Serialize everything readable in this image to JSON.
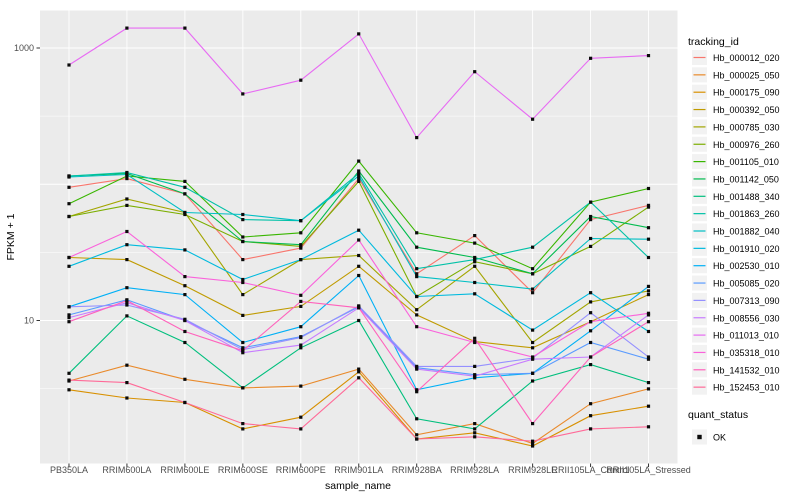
{
  "chart_data": {
    "type": "line",
    "title": "",
    "xlabel": "sample_name",
    "ylabel": "FPKM + 1",
    "y_scale": "log10",
    "ylim": [
      1,
      1600
    ],
    "yticks": [
      {
        "value": 1000,
        "label": "1000"
      },
      {
        "value": 10,
        "label": "10"
      }
    ],
    "y_major_gridlines": [
      10,
      100,
      1000
    ],
    "y_minor_gridlines": [
      3.162,
      31.62,
      316.2
    ],
    "categories": [
      "PB350LA",
      "RRIM600LA",
      "RRIM600LE",
      "RRIM600SE",
      "RRIM600PE",
      "RRIM901LA",
      "RRIM928BA",
      "RRIM928LA",
      "RRIM928LE",
      "RRII105LA_Control",
      "RRII105LA_Stressed"
    ],
    "legend": {
      "series_title": "tracking_id",
      "status_title": "quant_status",
      "status_items": [
        {
          "label": "OK",
          "marker": "black-square"
        }
      ]
    },
    "colors": {
      "panel_bg": "#EBEBEB",
      "gridline": "#FFFFFF",
      "point": "#0A0A0A",
      "tick_mark": "#333333",
      "tick_text": "#4D4D4D",
      "legend_key_bg": "#F2F2F2"
    },
    "series": [
      {
        "name": "Hb_000012_020",
        "color": "#F8766D",
        "values": [
          95,
          110,
          85,
          28,
          34,
          110,
          22,
          42,
          16,
          55,
          70
        ]
      },
      {
        "name": "Hb_000025_050",
        "color": "#E98A2B",
        "values": [
          3.6,
          4.7,
          3.7,
          3.2,
          3.3,
          4.4,
          1.45,
          1.75,
          1.25,
          2.45,
          3.15
        ]
      },
      {
        "name": "Hb_000175_090",
        "color": "#D89000",
        "values": [
          3.1,
          2.7,
          2.5,
          1.6,
          1.95,
          4.2,
          1.35,
          1.5,
          1.2,
          2.0,
          2.35
        ]
      },
      {
        "name": "Hb_000392_050",
        "color": "#C09B00",
        "values": [
          29,
          28,
          18,
          10.9,
          12.7,
          25,
          11,
          7,
          6.3,
          9.8,
          15.5
        ]
      },
      {
        "name": "Hb_000785_030",
        "color": "#A3A500",
        "values": [
          58,
          78,
          62,
          15.5,
          28,
          30,
          12,
          25,
          6.9,
          13.7,
          16.5
        ]
      },
      {
        "name": "Hb_000976_260",
        "color": "#7CAE00",
        "values": [
          58,
          70,
          60,
          38,
          35,
          105,
          15,
          27,
          22,
          35,
          68
        ]
      },
      {
        "name": "Hb_001105_010",
        "color": "#39B600",
        "values": [
          72,
          115,
          105,
          41,
          44,
          148,
          44,
          37,
          24,
          74,
          93
        ]
      },
      {
        "name": "Hb_001142_050",
        "color": "#00BB4E",
        "values": [
          115,
          120,
          85,
          38,
          36,
          125,
          34.5,
          29,
          22,
          58,
          48
        ]
      },
      {
        "name": "Hb_001488_340",
        "color": "#00BF7D",
        "values": [
          4.1,
          10.8,
          6.9,
          3.2,
          6.3,
          10,
          1.9,
          1.6,
          3.6,
          4.75,
          3.5
        ]
      },
      {
        "name": "Hb_001863_260",
        "color": "#00C1A7",
        "values": [
          115,
          122,
          95,
          55,
          54,
          120,
          24,
          28,
          34.5,
          74,
          29
        ]
      },
      {
        "name": "Hb_001882_040",
        "color": "#00BFC4",
        "values": [
          113,
          118,
          62,
          60,
          54,
          115,
          21,
          19,
          17,
          40,
          39.5
        ]
      },
      {
        "name": "Hb_001910_020",
        "color": "#00BADE",
        "values": [
          25,
          36,
          33,
          20,
          28,
          46,
          15,
          15.7,
          8.5,
          16,
          8.3
        ]
      },
      {
        "name": "Hb_002530_010",
        "color": "#00B0F6",
        "values": [
          12.6,
          17.4,
          15.5,
          6.9,
          9.0,
          21.4,
          3.1,
          3.8,
          4.1,
          8.4,
          17.8
        ]
      },
      {
        "name": "Hb_005085_020",
        "color": "#5A9BFF",
        "values": [
          11,
          14.2,
          10,
          6.3,
          7.6,
          12.6,
          4.5,
          4.0,
          4.1,
          6.9,
          5.2
        ]
      },
      {
        "name": "Hb_007313_090",
        "color": "#9590FF",
        "values": [
          12.6,
          13,
          10.2,
          6.1,
          7.5,
          12.8,
          4.6,
          4.6,
          5.3,
          11.4,
          5.4
        ]
      },
      {
        "name": "Hb_008556_030",
        "color": "#C77CFF",
        "values": [
          10.5,
          13.5,
          10,
          5.8,
          6.6,
          12.4,
          4.4,
          3.9,
          5.2,
          5.4,
          11.0
        ]
      },
      {
        "name": "Hb_011013_010",
        "color": "#E76BF3",
        "values": [
          750,
          1400,
          1400,
          460,
          580,
          1270,
          220,
          670,
          300,
          840,
          880
        ]
      },
      {
        "name": "Hb_035318_010",
        "color": "#FA62DB",
        "values": [
          29,
          45,
          21,
          19,
          15.3,
          39,
          9.0,
          6.9,
          5.4,
          9.8,
          11.3
        ]
      },
      {
        "name": "Hb_141532_010",
        "color": "#FF62BC",
        "values": [
          9.8,
          14,
          8.3,
          6.0,
          13.8,
          12.4,
          3.0,
          7.4,
          1.75,
          5.4,
          9.8
        ]
      },
      {
        "name": "Hb_152453_010",
        "color": "#FF6A98",
        "values": [
          3.65,
          3.5,
          2.5,
          1.75,
          1.6,
          3.8,
          1.35,
          1.4,
          1.3,
          1.6,
          1.66
        ]
      }
    ]
  }
}
